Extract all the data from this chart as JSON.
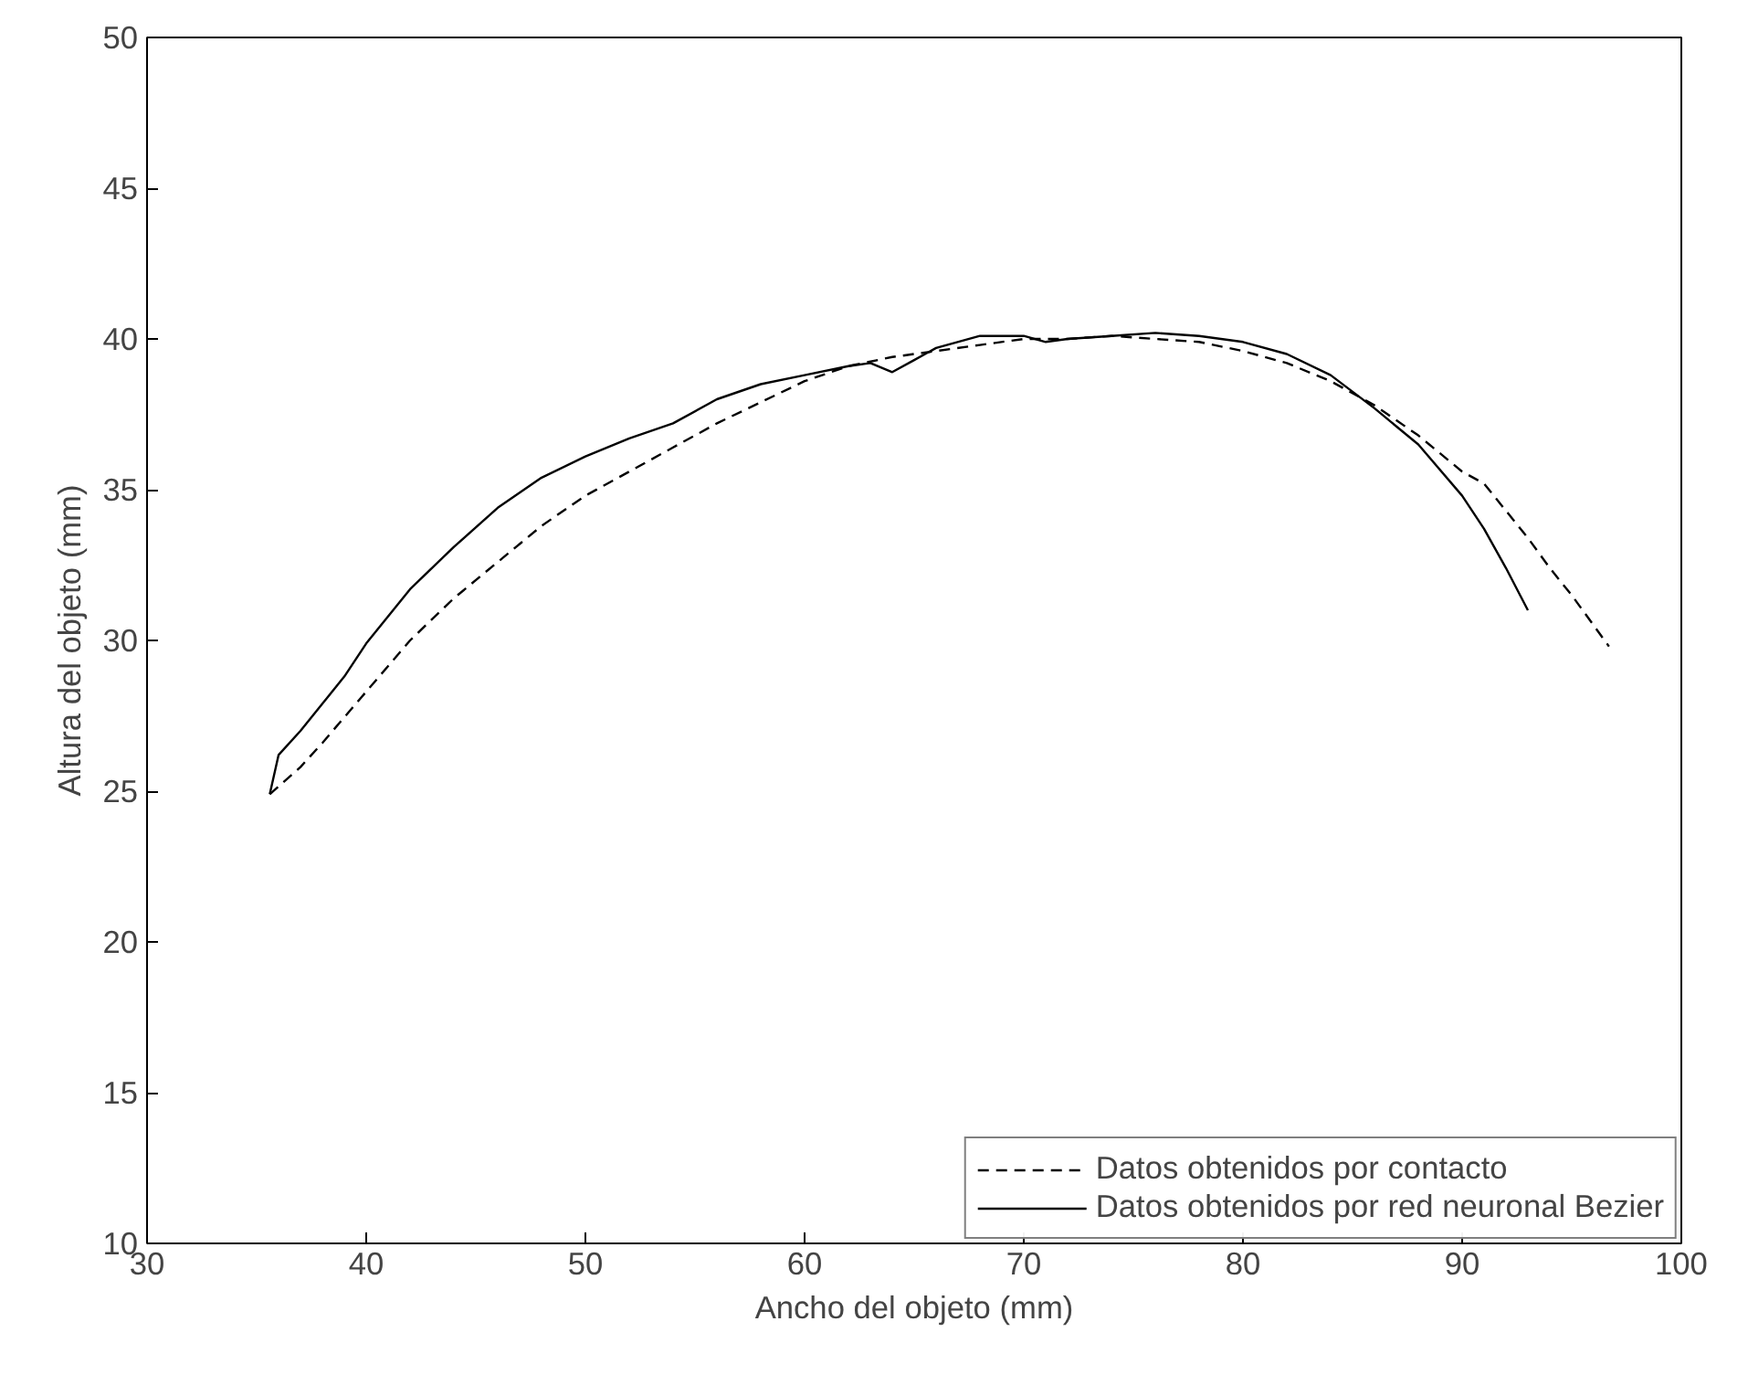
{
  "chart_data": {
    "type": "line",
    "xlabel": "Ancho del objeto (mm)",
    "ylabel": "Altura del objeto (mm)",
    "xlim": [
      30,
      100
    ],
    "xticks": [
      30,
      40,
      50,
      60,
      70,
      80,
      90,
      100
    ],
    "ylim": [
      10,
      50
    ],
    "yticks": [
      10,
      15,
      20,
      25,
      30,
      35,
      40,
      45,
      50
    ],
    "grid": false,
    "legend": "bottom right",
    "marker": "none",
    "series": [
      {
        "name": "Datos obtenidos por contacto",
        "color": "#000000",
        "line_style": "dashed",
        "x": [
          35.6,
          37,
          38,
          40,
          42,
          44,
          46,
          48,
          50,
          52,
          54,
          56,
          58,
          60,
          62,
          64,
          66,
          68,
          70,
          72,
          74,
          76,
          78,
          80,
          82,
          84,
          86,
          88,
          90,
          91,
          92,
          93,
          94,
          95,
          96,
          96.7
        ],
        "values": [
          24.9,
          25.8,
          26.6,
          28.3,
          30,
          31.4,
          32.6,
          33.8,
          34.8,
          35.6,
          36.4,
          37.2,
          37.9,
          38.6,
          39.1,
          39.4,
          39.6,
          39.8,
          40,
          40,
          40.1,
          40,
          39.9,
          39.6,
          39.2,
          38.6,
          37.8,
          36.8,
          35.6,
          35.2,
          34.3,
          33.4,
          32.4,
          31.5,
          30.5,
          29.8
        ]
      },
      {
        "name": "Datos obtenidos por red neuronal Bezier",
        "color": "#000000",
        "line_style": "solid",
        "x": [
          35.6,
          36,
          37,
          38,
          39,
          40,
          42,
          44,
          46,
          48,
          50,
          52,
          54,
          56,
          58,
          60,
          62,
          63,
          64,
          65,
          66,
          68,
          70,
          71,
          72,
          74,
          76,
          78,
          80,
          82,
          84,
          86,
          88,
          90,
          91,
          92,
          93
        ],
        "values": [
          24.9,
          26.2,
          27,
          27.9,
          28.8,
          29.9,
          31.7,
          33.1,
          34.4,
          35.4,
          36.1,
          36.7,
          37.2,
          38,
          38.5,
          38.8,
          39.1,
          39.2,
          38.9,
          39.3,
          39.7,
          40.1,
          40.1,
          39.9,
          40,
          40.1,
          40.2,
          40.1,
          39.9,
          39.5,
          38.8,
          37.7,
          36.5,
          34.8,
          33.7,
          32.4,
          31
        ]
      }
    ]
  }
}
